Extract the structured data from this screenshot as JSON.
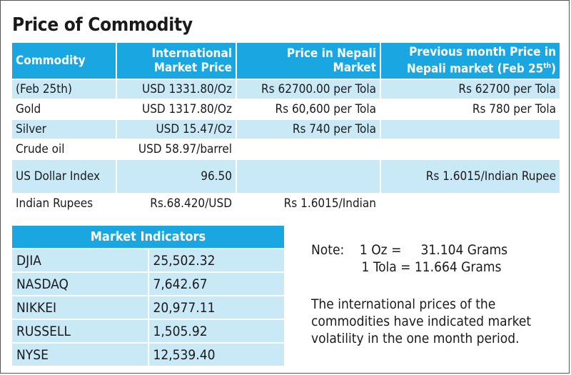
{
  "title": "Price of Commodity",
  "commodity_table": {
    "headers": [
      "Commodity",
      "International Market Price",
      "Price in Nepali Market",
      "Previous month Price in Nepali market (Feb 25",
      "th",
      ")"
    ],
    "header_lines": {
      "h0": "Commodity",
      "h1a": "International",
      "h1b": "Market Price",
      "h2a": "Price in Nepali",
      "h2b": "Market",
      "h3a": "Previous month Price in",
      "h3b": "Nepali market (Feb 25",
      "h3sup": "th",
      "h3end": ")"
    },
    "rows": [
      [
        "(Feb 25th)",
        "USD 1331.80/Oz",
        "Rs 62700.00 per Tola",
        "Rs 62700 per Tola"
      ],
      [
        "Gold",
        "USD 1317.80/Oz",
        "Rs  60,600 per Tola",
        "Rs 780 per Tola"
      ],
      [
        "Silver",
        "USD 15.47/Oz",
        "Rs  740 per Tola",
        ""
      ],
      [
        "Crude oil",
        "USD 58.97/barrel",
        "",
        ""
      ],
      [
        "US Dollar Index",
        "96.50",
        "",
        "Rs 1.6015/Indian Rupee"
      ],
      [
        "Indian Rupees",
        "Rs.68.420/USD",
        "Rs 1.6015/Indian",
        ""
      ]
    ]
  },
  "market_indicators": {
    "title": "Market Indicators",
    "rows": [
      [
        "DJIA",
        "25,502.32"
      ],
      [
        "NASDAQ",
        "7,642.67"
      ],
      [
        "NIKKEI",
        "20,977.11"
      ],
      [
        "RUSSELL",
        "1,505.92"
      ],
      [
        "NYSE",
        "12,539.40"
      ]
    ]
  },
  "note": {
    "line1": "Note:    1 Oz =     31.104 Grams",
    "line2": "             1 Tola = 11.664 Grams"
  },
  "paragraph": "The international prices of the commodities have indicated market volatility in the one month period.",
  "colors": {
    "header_blue": "#1aa6e0",
    "row_blue": "#c9e9f7"
  }
}
